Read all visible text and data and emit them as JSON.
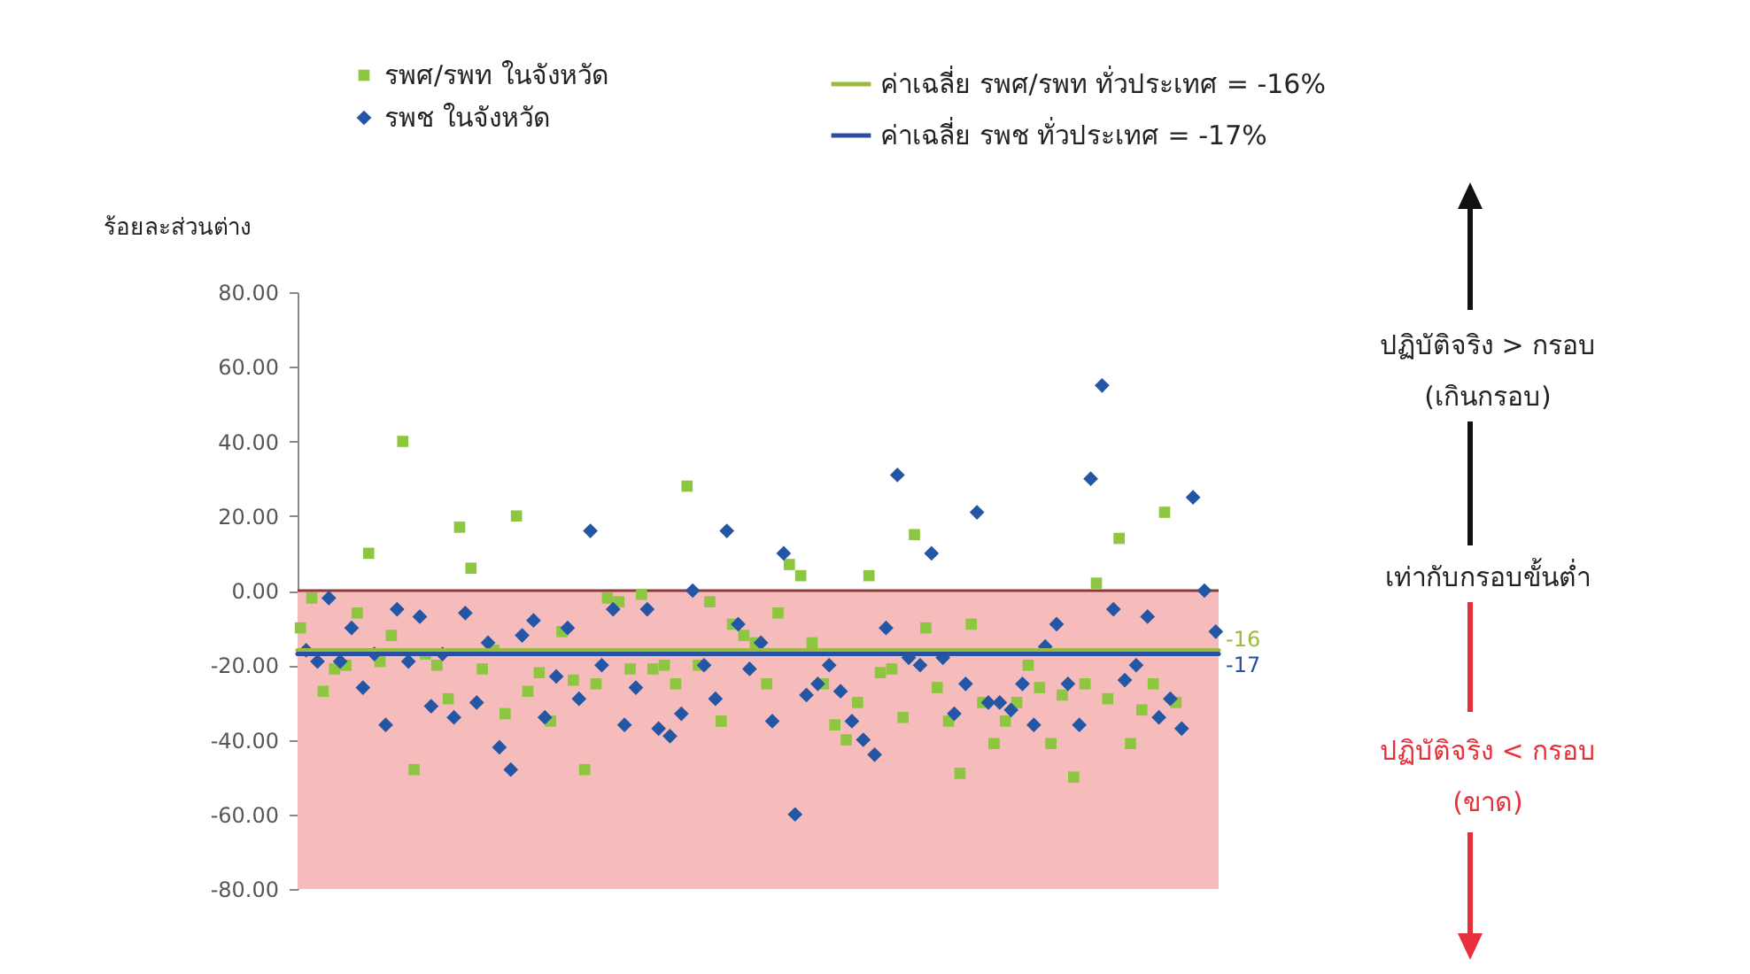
{
  "chart_data": {
    "type": "scatter",
    "ylabel": "ร้อยละส่วนต่าง",
    "legend": "top",
    "tick_labels": "y",
    "grid": false,
    "categories": [
      null,
      null,
      null,
      null,
      null,
      null,
      null,
      null,
      null,
      null,
      null,
      null,
      null,
      null,
      null,
      null,
      null,
      null,
      null,
      null,
      null,
      null,
      null,
      null,
      null,
      null,
      null,
      null,
      null,
      null,
      null,
      null,
      null,
      null,
      null,
      null,
      null,
      null,
      null,
      null,
      null,
      null,
      null,
      null,
      null,
      null,
      null,
      null,
      null,
      null,
      null,
      null,
      null,
      null,
      null,
      null,
      null,
      null,
      null,
      null,
      null,
      null,
      null,
      null,
      null,
      null,
      null,
      null,
      null,
      null,
      null,
      null,
      null,
      null,
      null,
      null,
      null,
      null,
      null,
      null,
      null,
      null,
      null,
      null,
      null,
      null,
      null,
      null,
      null,
      null,
      null,
      null,
      null,
      null,
      null,
      null,
      null,
      null,
      null,
      null,
      null,
      null,
      null,
      null,
      null,
      null,
      null,
      null,
      null,
      null,
      null,
      null,
      null,
      null,
      null,
      null,
      null,
      null,
      null,
      null,
      null,
      null,
      null,
      null,
      null,
      null,
      null,
      null,
      null,
      null,
      null,
      null,
      null,
      null,
      null,
      null,
      null,
      null,
      null,
      null,
      null,
      null,
      null,
      null,
      null,
      null,
      null,
      null,
      null,
      null,
      null,
      null,
      null,
      null,
      null,
      null,
      null,
      null,
      null,
      null,
      null,
      null
    ],
    "ylim": [
      -80,
      80
    ],
    "yticks": [
      {
        "value": -80,
        "label": "-80.00"
      },
      {
        "value": -60,
        "label": "-60.00"
      },
      {
        "value": -40,
        "label": "-40.00"
      },
      {
        "value": -20,
        "label": "-20.00"
      },
      {
        "value": 0,
        "label": "0.00"
      },
      {
        "value": 20,
        "label": "20.00"
      },
      {
        "value": 40,
        "label": "40.00"
      },
      {
        "value": 60,
        "label": "60.00"
      },
      {
        "value": 80,
        "label": "80.00"
      }
    ],
    "series": [
      {
        "name": "รพศ/รพท ในจังหวัด",
        "color": "#8dc63f",
        "marker": "square",
        "values": [
          -10,
          null,
          -2,
          null,
          -27,
          null,
          -21,
          null,
          -20,
          null,
          -6,
          null,
          10,
          null,
          -19,
          null,
          -12,
          null,
          40,
          null,
          -48,
          null,
          -17,
          null,
          -20,
          null,
          -29,
          null,
          17,
          null,
          6,
          null,
          -21,
          null,
          -16,
          null,
          -33,
          null,
          20,
          null,
          -27,
          null,
          -22,
          null,
          -35,
          null,
          -11,
          null,
          -24,
          null,
          -48,
          null,
          -25,
          null,
          -2,
          null,
          -3,
          null,
          -21,
          null,
          -1,
          null,
          -21,
          null,
          -20,
          null,
          -25,
          null,
          28,
          null,
          -20,
          null,
          -3,
          null,
          -35,
          null,
          -9,
          null,
          -12,
          null,
          -14,
          null,
          -25,
          null,
          -6,
          null,
          7,
          null,
          4,
          null,
          -14,
          null,
          -25,
          null,
          -36,
          null,
          -40,
          null,
          -30,
          null,
          4,
          null,
          -22,
          null,
          -21,
          null,
          -34,
          null,
          15,
          null,
          -10,
          null,
          -26,
          null,
          -35,
          null,
          -49,
          null,
          -9,
          null,
          -30,
          null,
          -41,
          null,
          -35,
          null,
          -30,
          null,
          -20,
          null,
          -26,
          null,
          -41,
          null,
          -28,
          null,
          -50,
          null,
          -25,
          null,
          2,
          null,
          -29,
          null,
          14,
          null,
          -41,
          null,
          -32,
          null,
          -25,
          null,
          21,
          null,
          -30,
          null,
          null,
          null,
          null,
          null,
          null,
          null
        ]
      },
      {
        "name": "รพช ในจังหวัด",
        "color": "#2456a6",
        "marker": "diamond",
        "values": [
          null,
          -16,
          null,
          -19,
          null,
          -2,
          null,
          -19,
          null,
          -10,
          null,
          -26,
          null,
          -17,
          null,
          -36,
          null,
          -5,
          null,
          -19,
          null,
          -7,
          null,
          -31,
          null,
          -17,
          null,
          -34,
          null,
          -6,
          null,
          -30,
          null,
          -14,
          null,
          -42,
          null,
          -48,
          null,
          -12,
          null,
          -8,
          null,
          -34,
          null,
          -23,
          null,
          -10,
          null,
          -29,
          null,
          16,
          null,
          -20,
          null,
          -5,
          null,
          -36,
          null,
          -26,
          null,
          -5,
          null,
          -37,
          null,
          -39,
          null,
          -33,
          null,
          0,
          null,
          -20,
          null,
          -29,
          null,
          16,
          null,
          -9,
          null,
          -21,
          null,
          -14,
          null,
          -35,
          null,
          10,
          null,
          -60,
          null,
          -28,
          null,
          -25,
          null,
          -20,
          null,
          -27,
          null,
          -35,
          null,
          -40,
          null,
          -44,
          null,
          -10,
          null,
          31,
          null,
          -18,
          null,
          -20,
          null,
          10,
          null,
          -18,
          null,
          -33,
          null,
          -25,
          null,
          21,
          null,
          -30,
          null,
          -30,
          null,
          -32,
          null,
          -25,
          null,
          -36,
          null,
          -15,
          null,
          -9,
          null,
          -25,
          null,
          -36,
          null,
          30,
          null,
          55,
          null,
          -5,
          null,
          -24,
          null,
          -20,
          null,
          -7,
          null,
          -34,
          null,
          -29,
          null,
          -37,
          null,
          25,
          null,
          0,
          null,
          -11
        ]
      }
    ],
    "ref_lines": [
      {
        "axis": "y",
        "value": 0,
        "color": "#8b3a3a"
      },
      {
        "axis": "y",
        "value": -16,
        "label": "ค่าเฉลี่ย รพศ/รพท ทั่วประเทศ = -16%",
        "color": "#9bbb3c"
      },
      {
        "axis": "y",
        "value": -17,
        "label": "ค่าเฉลี่ย รพช ทั่วประเทศ = -17%",
        "color": "#2b4fa0"
      }
    ],
    "bands": [
      {
        "axis": "y",
        "from": 0,
        "to": -80,
        "color": "#f6bcbc"
      }
    ],
    "annotations": [
      "-16",
      "-17",
      "ปฏิบัติจริง > กรอบ",
      "(เกินกรอบ)",
      "เท่ากับกรอบขั้นต่ำ",
      "ปฏิบัติจริง < กรอบ",
      "(ขาด)"
    ]
  }
}
